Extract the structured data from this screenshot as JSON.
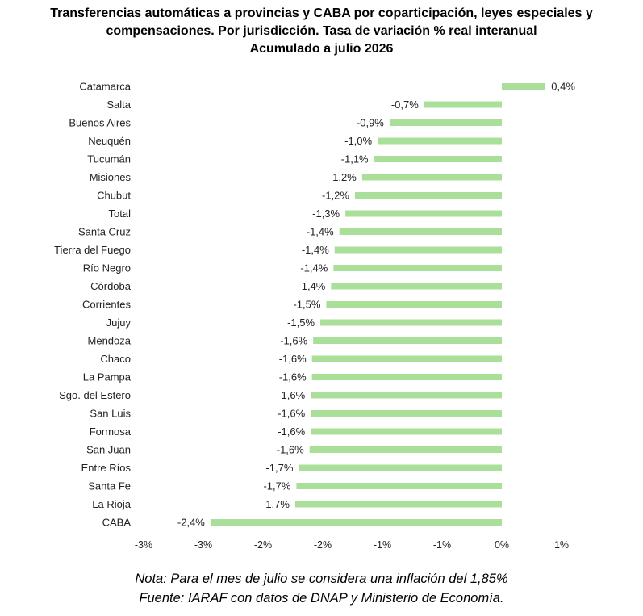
{
  "title_lines": [
    "Transferencias automáticas a provincias y CABA por coparticipación, leyes especiales y",
    "compensaciones. Por jurisdicción. Tasa de variación % real interanual",
    "Acumulado a julio 2026"
  ],
  "notes": [
    "Nota: Para el mes de julio se considera una inflación del 1,85%",
    "Fuente: IARAF con datos de DNAP y Ministerio de Economía."
  ],
  "colors": {
    "bar": "#a9df98",
    "text": "#000000",
    "axis_text": "#222222"
  },
  "chart_data": {
    "type": "bar",
    "orientation": "horizontal",
    "title": "Transferencias automáticas a provincias y CABA por coparticipación, leyes especiales y compensaciones. Por jurisdicción. Tasa de variación % real interanual Acumulado a julio 2026",
    "xlabel": "",
    "ylabel": "",
    "xlim": [
      -3,
      1
    ],
    "x_ticks": [
      -3,
      -2,
      -1,
      0,
      1
    ],
    "x_tick_labels": [
      "-3%",
      "-3%",
      "-2%",
      "-2%",
      "-1%",
      "-1%",
      "0%",
      "1%"
    ],
    "x_tick_values": [
      -3,
      -2.5,
      -2,
      -1.5,
      -1,
      -0.5,
      0,
      0.5
    ],
    "grid": false,
    "legend": "none",
    "categories": [
      "Catamarca",
      "Salta",
      "Buenos Aires",
      "Neuquén",
      "Tucumán",
      "Misiones",
      "Chubut",
      "Total",
      "Santa Cruz",
      "Tierra del Fuego",
      "Río Negro",
      "Córdoba",
      "Corrientes",
      "Jujuy",
      "Mendoza",
      "Chaco",
      "La Pampa",
      "Sgo. del Estero",
      "San Luis",
      "Formosa",
      "San Juan",
      "Entre Ríos",
      "Santa Fe",
      "La Rioja",
      "CABA"
    ],
    "values": [
      0.36,
      -0.65,
      -0.94,
      -1.04,
      -1.07,
      -1.17,
      -1.23,
      -1.31,
      -1.36,
      -1.4,
      -1.41,
      -1.43,
      -1.47,
      -1.52,
      -1.58,
      -1.59,
      -1.59,
      -1.6,
      -1.6,
      -1.6,
      -1.61,
      -1.7,
      -1.72,
      -1.73,
      -2.44
    ],
    "data_labels": [
      "0,4%",
      "-0,7%",
      "-0,9%",
      "-1,0%",
      "-1,1%",
      "-1,2%",
      "-1,2%",
      "-1,3%",
      "-1,4%",
      "-1,4%",
      "-1,4%",
      "-1,4%",
      "-1,5%",
      "-1,5%",
      "-1,6%",
      "-1,6%",
      "-1,6%",
      "-1,6%",
      "-1,6%",
      "-1,6%",
      "-1,6%",
      "-1,7%",
      "-1,7%",
      "-1,7%",
      "-2,4%"
    ]
  }
}
